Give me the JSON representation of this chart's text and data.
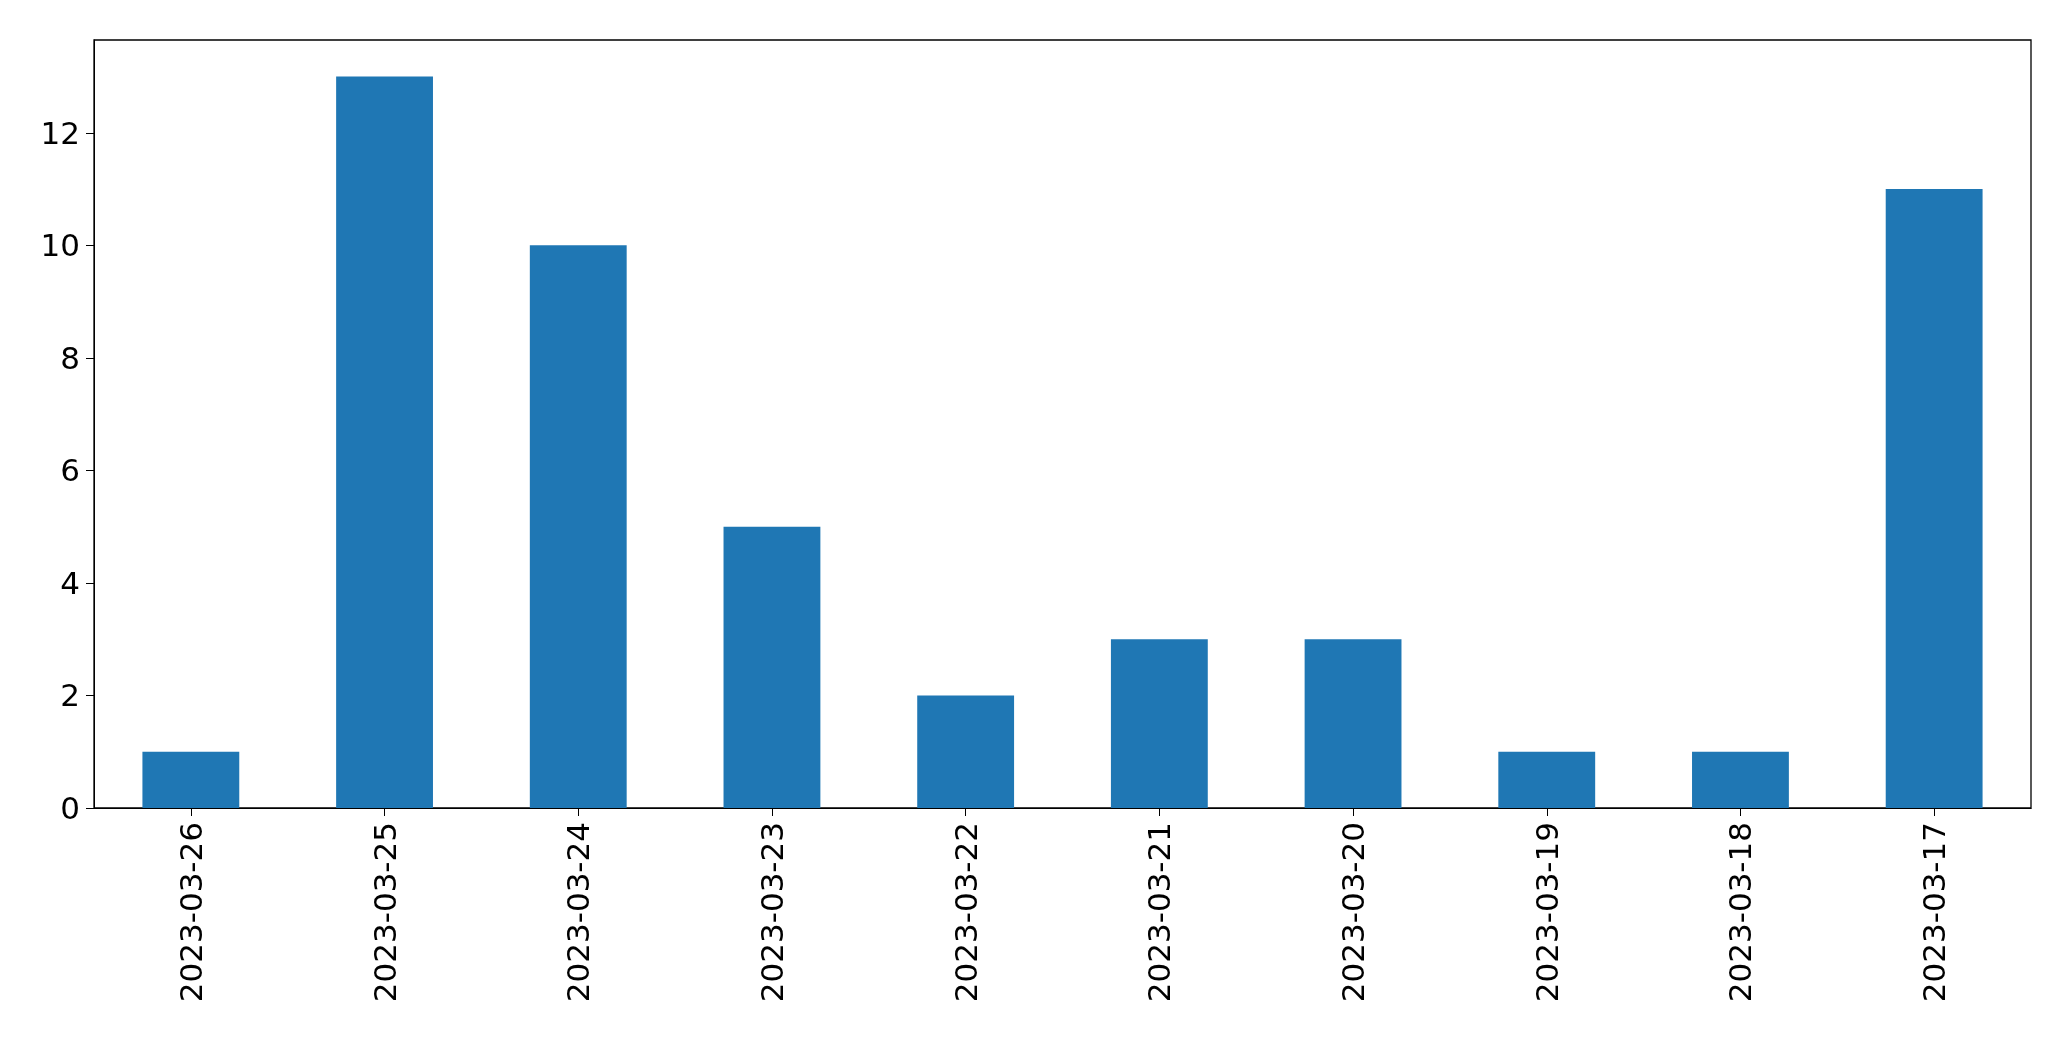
{
  "chart_data": {
    "type": "bar",
    "categories": [
      "2023-03-26",
      "2023-03-25",
      "2023-03-24",
      "2023-03-23",
      "2023-03-22",
      "2023-03-21",
      "2023-03-20",
      "2023-03-19",
      "2023-03-18",
      "2023-03-17"
    ],
    "values": [
      1,
      13,
      10,
      5,
      2,
      3,
      3,
      1,
      1,
      11
    ],
    "color": "#1f77b4",
    "ylim": [
      0,
      13.65
    ],
    "yticks": [
      0,
      2,
      4,
      6,
      8,
      10,
      12
    ],
    "grid": false
  }
}
